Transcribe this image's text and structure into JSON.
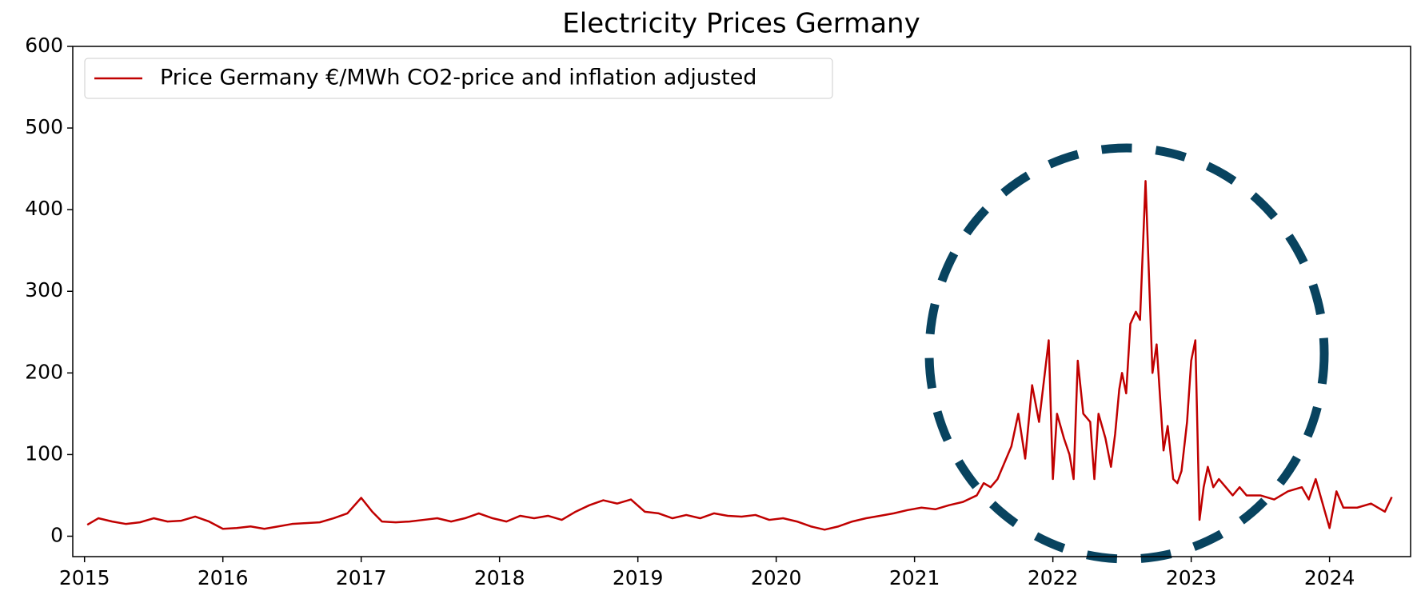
{
  "chart_data": {
    "type": "line",
    "title": "Electricity Prices Germany",
    "x": [
      2015.02,
      2015.1,
      2015.2,
      2015.3,
      2015.4,
      2015.5,
      2015.6,
      2015.7,
      2015.8,
      2015.9,
      2016.0,
      2016.1,
      2016.2,
      2016.3,
      2016.4,
      2016.5,
      2016.6,
      2016.7,
      2016.8,
      2016.9,
      2017.0,
      2017.08,
      2017.15,
      2017.25,
      2017.35,
      2017.45,
      2017.55,
      2017.65,
      2017.75,
      2017.85,
      2017.95,
      2018.05,
      2018.15,
      2018.25,
      2018.35,
      2018.45,
      2018.55,
      2018.65,
      2018.75,
      2018.85,
      2018.95,
      2019.05,
      2019.15,
      2019.25,
      2019.35,
      2019.45,
      2019.55,
      2019.65,
      2019.75,
      2019.85,
      2019.95,
      2020.05,
      2020.15,
      2020.25,
      2020.35,
      2020.45,
      2020.55,
      2020.65,
      2020.75,
      2020.85,
      2020.95,
      2021.05,
      2021.15,
      2021.25,
      2021.35,
      2021.45,
      2021.5,
      2021.55,
      2021.6,
      2021.65,
      2021.7,
      2021.75,
      2021.8,
      2021.85,
      2021.9,
      2021.97,
      2022.0,
      2022.03,
      2022.08,
      2022.12,
      2022.15,
      2022.18,
      2022.22,
      2022.27,
      2022.3,
      2022.33,
      2022.38,
      2022.42,
      2022.45,
      2022.48,
      2022.5,
      2022.53,
      2022.56,
      2022.6,
      2022.63,
      2022.67,
      2022.72,
      2022.75,
      2022.8,
      2022.83,
      2022.87,
      2022.9,
      2022.93,
      2022.97,
      2023.0,
      2023.03,
      2023.06,
      2023.09,
      2023.12,
      2023.16,
      2023.2,
      2023.25,
      2023.3,
      2023.35,
      2023.4,
      2023.5,
      2023.6,
      2023.7,
      2023.8,
      2023.85,
      2023.9,
      2023.95,
      2024.0,
      2024.05,
      2024.1,
      2024.2,
      2024.3,
      2024.4,
      2024.45
    ],
    "series": [
      {
        "name": "Price Germany €/MWh CO2-price and inflation adjusted",
        "color": "#c00000",
        "values": [
          14,
          22,
          18,
          15,
          17,
          22,
          18,
          19,
          24,
          18,
          9,
          10,
          12,
          9,
          12,
          15,
          16,
          17,
          22,
          28,
          47,
          30,
          18,
          17,
          18,
          20,
          22,
          18,
          22,
          28,
          22,
          18,
          25,
          22,
          25,
          20,
          30,
          38,
          44,
          40,
          45,
          30,
          28,
          22,
          26,
          22,
          28,
          25,
          24,
          26,
          20,
          22,
          18,
          12,
          8,
          12,
          18,
          22,
          25,
          28,
          32,
          35,
          33,
          38,
          42,
          50,
          65,
          60,
          70,
          90,
          110,
          150,
          95,
          185,
          140,
          240,
          70,
          150,
          120,
          100,
          70,
          215,
          150,
          140,
          70,
          150,
          120,
          85,
          125,
          180,
          200,
          175,
          260,
          275,
          265,
          435,
          200,
          235,
          105,
          135,
          70,
          65,
          80,
          140,
          215,
          240,
          20,
          60,
          85,
          60,
          70,
          60,
          50,
          60,
          50,
          50,
          45,
          55,
          60,
          45,
          70,
          40,
          10,
          55,
          35,
          35,
          40,
          30,
          48
        ]
      }
    ],
    "xlim": [
      2014.915,
      2024.586
    ],
    "xticks": [
      2015,
      2016,
      2017,
      2018,
      2019,
      2020,
      2021,
      2022,
      2023,
      2024
    ],
    "ylim": [
      -25,
      600
    ],
    "yticks": [
      0,
      100,
      200,
      300,
      400,
      500,
      600
    ],
    "legend": "upper left"
  }
}
